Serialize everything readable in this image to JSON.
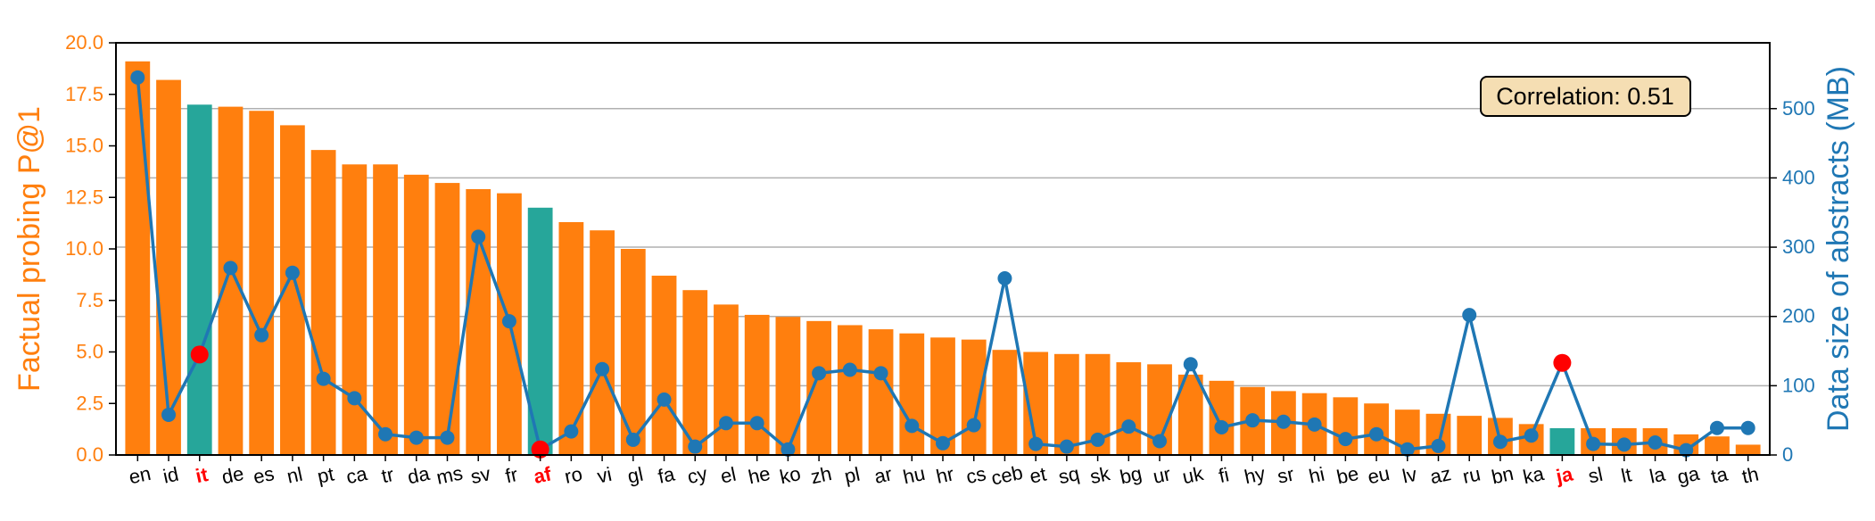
{
  "chart_data": {
    "type": "bar",
    "categories": [
      "en",
      "id",
      "it",
      "de",
      "es",
      "nl",
      "pt",
      "ca",
      "tr",
      "da",
      "ms",
      "sv",
      "fr",
      "af",
      "ro",
      "vi",
      "gl",
      "fa",
      "cy",
      "el",
      "he",
      "ko",
      "zh",
      "pl",
      "ar",
      "hu",
      "hr",
      "cs",
      "ceb",
      "et",
      "sq",
      "sk",
      "bg",
      "ur",
      "uk",
      "fi",
      "hy",
      "sr",
      "hi",
      "be",
      "eu",
      "lv",
      "az",
      "ru",
      "bn",
      "ka",
      "ja",
      "sl",
      "lt",
      "la",
      "ga",
      "ta",
      "th"
    ],
    "highlighted_categories": [
      "it",
      "af",
      "ja"
    ],
    "series": [
      {
        "axis": "left",
        "type": "bar",
        "values": [
          19.1,
          18.2,
          17.0,
          16.9,
          16.7,
          16.0,
          14.8,
          14.1,
          14.1,
          13.6,
          13.2,
          12.9,
          12.7,
          12.0,
          11.3,
          10.9,
          10.0,
          8.7,
          8.0,
          7.3,
          6.8,
          6.7,
          6.5,
          6.3,
          6.1,
          5.9,
          5.7,
          5.6,
          5.1,
          5.0,
          4.9,
          4.9,
          4.5,
          4.4,
          3.9,
          3.6,
          3.3,
          3.1,
          3.0,
          2.8,
          2.5,
          2.2,
          2.0,
          1.9,
          1.8,
          1.5,
          1.3,
          1.3,
          1.3,
          1.3,
          1.0,
          0.9,
          0.5
        ],
        "highlight_bars": [
          2,
          13,
          46
        ]
      },
      {
        "axis": "right",
        "type": "line",
        "values": [
          545,
          58,
          145,
          270,
          173,
          263,
          110,
          82,
          30,
          25,
          25,
          315,
          193,
          8,
          34,
          124,
          22,
          80,
          12,
          46,
          46,
          8,
          118,
          123,
          118,
          42,
          17,
          43,
          255,
          16,
          12,
          22,
          41,
          20,
          131,
          40,
          50,
          48,
          44,
          23,
          30,
          8,
          13,
          202,
          19,
          28,
          133,
          16,
          15,
          18,
          7,
          39,
          39
        ],
        "highlight_points": [
          2,
          13,
          46
        ]
      }
    ],
    "ylabel": "Factual probing P@1",
    "y2label": "Data size of abstracts (MB)",
    "ylim": [
      0,
      20
    ],
    "y2lim": [
      0,
      595
    ],
    "yticks": [
      "0.0",
      "2.5",
      "5.0",
      "7.5",
      "10.0",
      "12.5",
      "15.0",
      "17.5",
      "20.0"
    ],
    "y2ticks": [
      "0",
      "100",
      "200",
      "300",
      "400",
      "500"
    ],
    "grid": "horizontal, right axis",
    "annotation": "Correlation: 0.51",
    "annotation_placement": "top-right"
  },
  "colors": {
    "bar": "#ff7f0e",
    "bar_highlight": "#26a69a",
    "line": "#1f77b4",
    "point_highlight": "#ff0000",
    "left_axis": "#ff7f0e",
    "right_axis": "#1f77b4",
    "label_highlight": "#ff0000",
    "annotation_fill": "#f5deb3",
    "grid": "#b0b0b0"
  }
}
